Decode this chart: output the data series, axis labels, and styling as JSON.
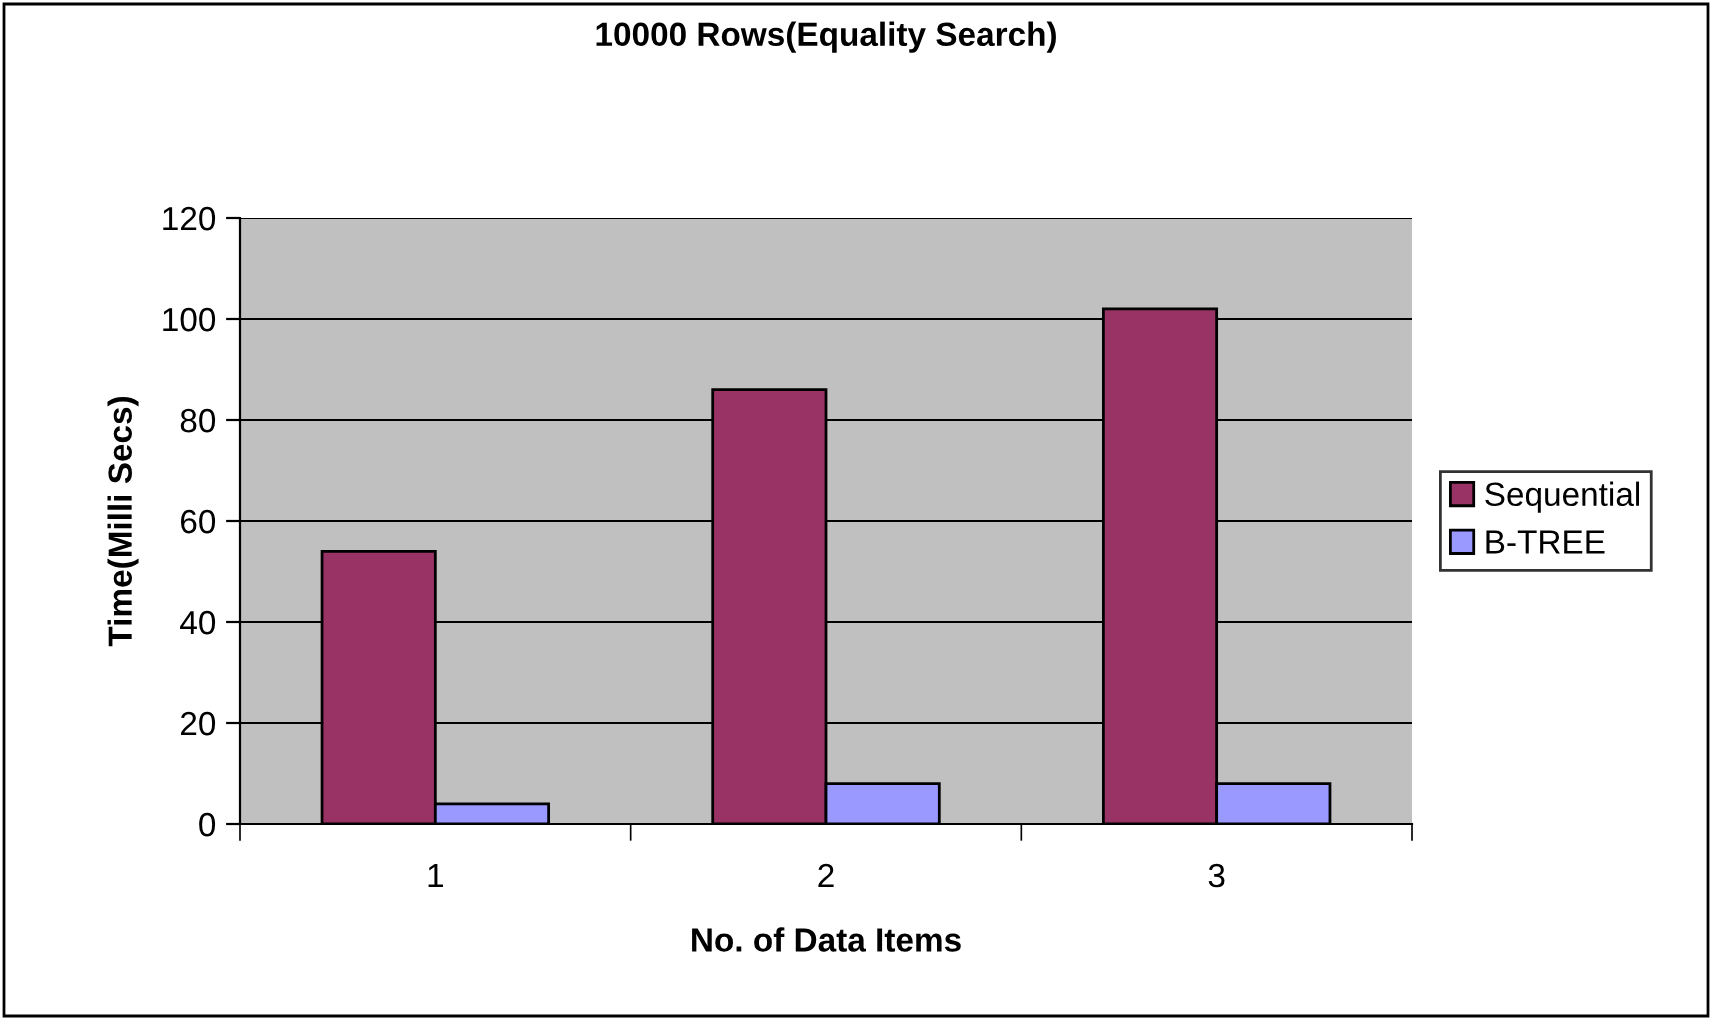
{
  "chart_data": {
    "type": "bar",
    "title": "10000 Rows(Equality Search)",
    "xlabel": "No. of Data Items",
    "ylabel": "Time(Milli Secs)",
    "categories": [
      "1",
      "2",
      "3"
    ],
    "series": [
      {
        "name": "Sequential",
        "color": "#993366",
        "values": [
          54,
          86,
          102
        ]
      },
      {
        "name": "B-TREE",
        "color": "#9999ff",
        "values": [
          4,
          8,
          8
        ]
      }
    ],
    "ylim": [
      0,
      120
    ],
    "yticks": [
      0,
      20,
      40,
      60,
      80,
      100,
      120
    ],
    "grid": "y",
    "legend": "right"
  }
}
